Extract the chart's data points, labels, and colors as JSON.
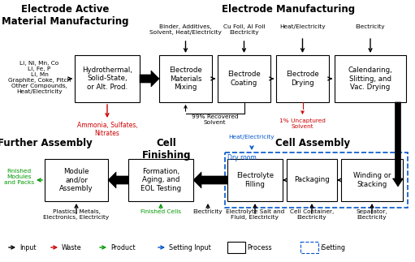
{
  "bg_color": "#ffffff",
  "title_left": "Electrode Active\nMaterial Manufacturing",
  "title_right": "Electrode Manufacturing",
  "title_further": "Further Assembly",
  "title_finishing": "Cell\nFinishing",
  "title_cell": "Cell Assembly",
  "box_lbl_1": "Hydrothermal,\nSolid-State,\nor Alt. Prod.",
  "box_lbl_2": "Electrode\nMaterials\nMixing",
  "box_lbl_3": "Electrode\nCoating",
  "box_lbl_4": "Electrode\nDrying",
  "box_lbl_5": "Calendaring,\nSlitting, and\nVac. Drying",
  "box_lbl_cf": "Formation,\nAging, and\nEOL Testing",
  "box_lbl_ma": "Module\nand/or\nAssembly",
  "box_lbl_ef": "Electrolyte\nFilling",
  "box_lbl_pk": "Packaging",
  "box_lbl_ws": "Winding or\nStacking",
  "lbl_input_mat": "Li, Ni, Mn, Co\nLi, Fe, P\nLi, Mn\nGraphite, Coke, Pitch\nOther Compounds,\nHeat/Electricity",
  "lbl_binder": "Binder, Additives,\nSolvent, Heat/Electricity",
  "lbl_cufoil": "Cu Foil, Al Foil\nElectricity",
  "lbl_heat1": "Heat/Electricity",
  "lbl_elec1": "Electricity",
  "lbl_waste": "Ammonia, Sulfates,\nNitrates",
  "lbl_99pct": "99% Recovered\nSolvent",
  "lbl_1pct": "1% Uncaptured\nSolvent",
  "lbl_heat2": "Heat/Electricity",
  "lbl_dryroom": "Dry room",
  "lbl_finished_mods": "Finished\nModules\nand Packs",
  "lbl_plastics": "Plastics, Metals,\nElectronics, Electricity",
  "lbl_fin_cells": "Finished Cells",
  "lbl_elec2": "Electricity",
  "lbl_elec_salt": "Electrolyte Salt and\nFluid, Electricity",
  "lbl_cell_cont": "Cell Container,\nElectricity",
  "lbl_sep": "Separator,\nElectricity",
  "leg_input": "Input",
  "leg_waste": "Waste",
  "leg_product": "Product",
  "leg_setting": "Setting Input",
  "leg_process": "Process",
  "leg_isetting": "iSetting",
  "col_black": "#000000",
  "col_red": "#cc0000",
  "col_green": "#009900",
  "col_blue": "#0055cc"
}
